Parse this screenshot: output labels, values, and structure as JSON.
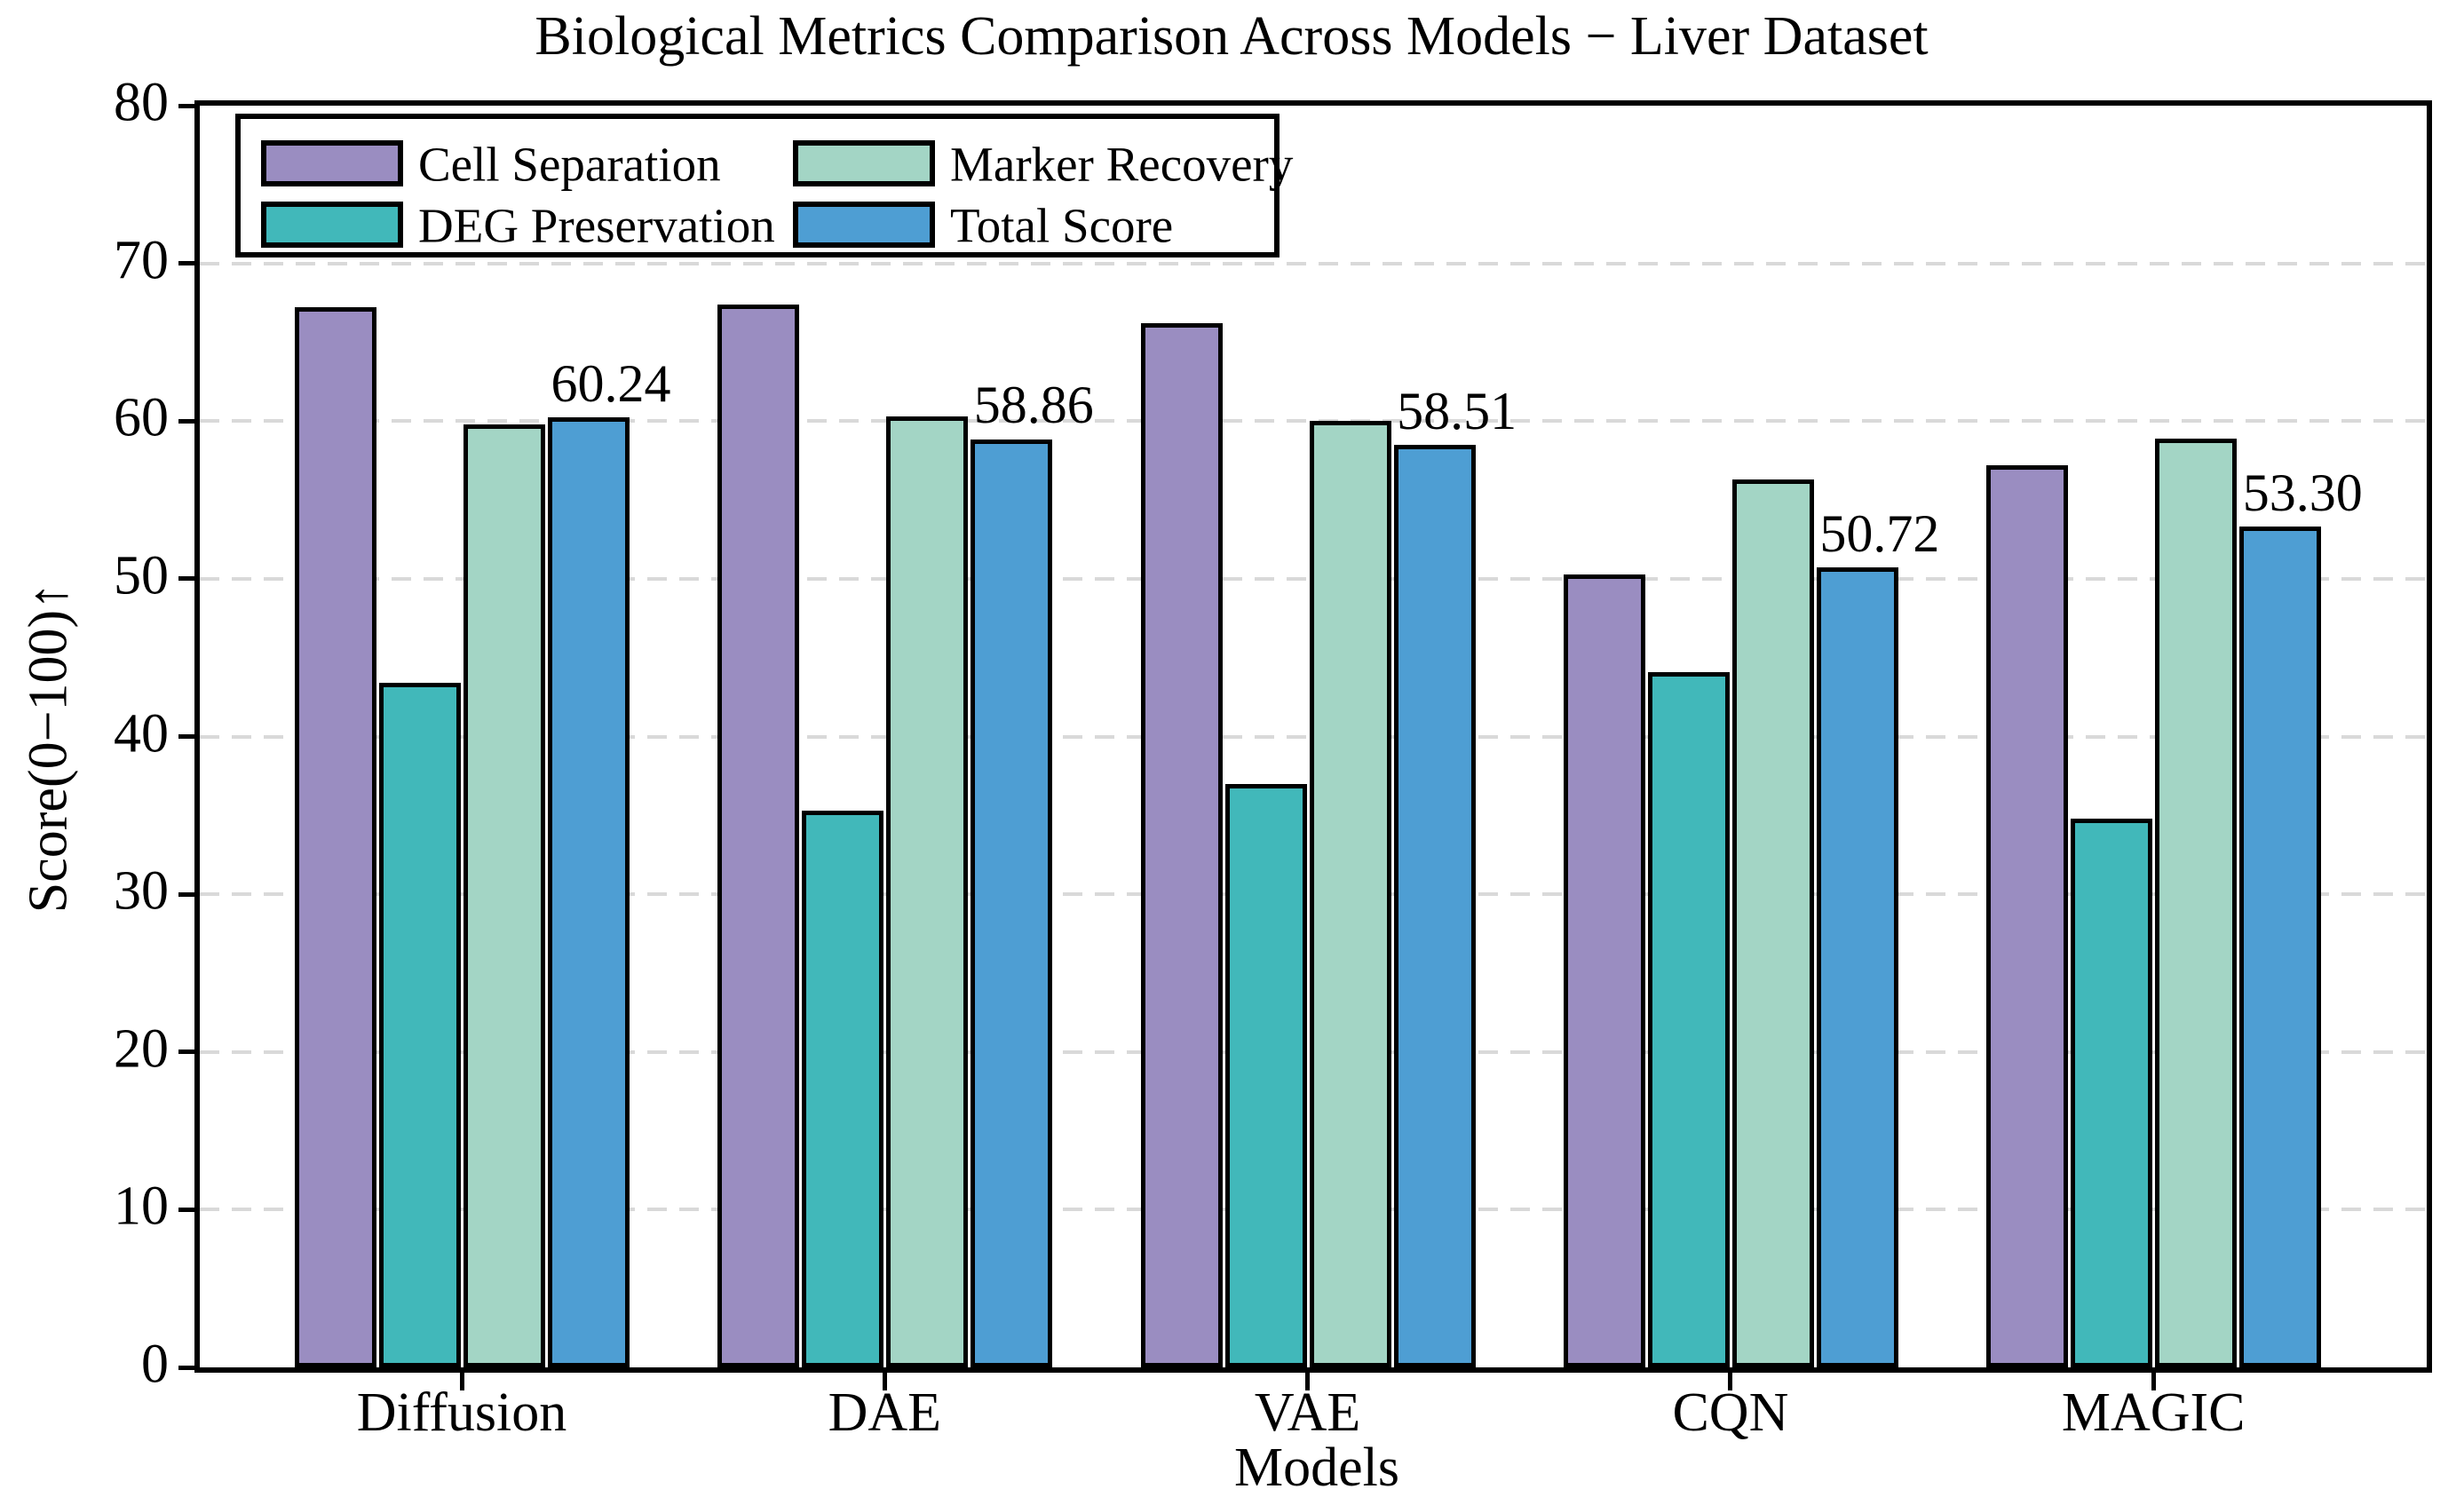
{
  "chart_data": {
    "type": "bar",
    "title": "Biological Metrics Comparison Across Models − Liver Dataset",
    "xlabel": "Models",
    "ylabel": "Score(0−100)↑",
    "categories": [
      "Diffusion",
      "DAE",
      "VAE",
      "CQN",
      "MAGIC"
    ],
    "series": [
      {
        "name": "Cell Separation",
        "color": "#9a8dc1",
        "values": [
          67.2,
          67.4,
          66.2,
          50.3,
          57.2
        ]
      },
      {
        "name": "DEG Preservation",
        "color": "#41b8ba",
        "values": [
          43.4,
          35.3,
          37.0,
          44.1,
          34.8
        ]
      },
      {
        "name": "Marker Recovery",
        "color": "#a3d5c5",
        "values": [
          59.8,
          60.3,
          60.0,
          56.3,
          58.9
        ]
      },
      {
        "name": "Total Score",
        "color": "#4e9ed3",
        "values": [
          60.24,
          58.86,
          58.51,
          50.72,
          53.3
        ],
        "labels": [
          "60.24",
          "58.86",
          "58.51",
          "50.72",
          "53.30"
        ]
      }
    ],
    "ylim": [
      0,
      80
    ],
    "yticks": [
      "0",
      "10",
      "20",
      "30",
      "40",
      "50",
      "60",
      "70",
      "80"
    ],
    "grid": true,
    "legend_position": "upper left",
    "colors": {
      "axis": "#000000",
      "grid": "#d9d9d9",
      "background": "#ffffff",
      "bar_edge": "#000000"
    }
  }
}
